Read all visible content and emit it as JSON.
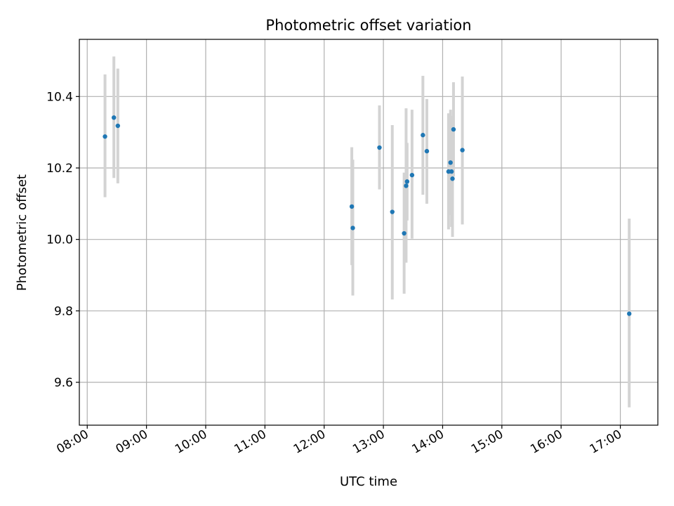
{
  "chart_data": {
    "type": "scatter",
    "title": "Photometric offset variation",
    "xlabel": "UTC time",
    "ylabel": "Photometric offset",
    "x_ticks": [
      "08:00",
      "09:00",
      "10:00",
      "11:00",
      "12:00",
      "13:00",
      "14:00",
      "15:00",
      "16:00",
      "17:00"
    ],
    "y_ticks": [
      "9.6",
      "9.8",
      "10.0",
      "10.2",
      "10.4"
    ],
    "xlim": [
      "07:52",
      "17:38"
    ],
    "ylim": [
      9.48,
      10.56
    ],
    "grid": true,
    "marker_color": "#1f77b4",
    "errorbar_color": "#d3d3d3",
    "points": [
      {
        "x": "08:18",
        "y": 10.288,
        "ylo": 10.118,
        "yhi": 10.462
      },
      {
        "x": "08:27",
        "y": 10.341,
        "ylo": 10.172,
        "yhi": 10.512
      },
      {
        "x": "08:31",
        "y": 10.318,
        "ylo": 10.157,
        "yhi": 10.478
      },
      {
        "x": "12:28",
        "y": 10.092,
        "ylo": 9.928,
        "yhi": 10.258
      },
      {
        "x": "12:29",
        "y": 10.032,
        "ylo": 9.843,
        "yhi": 10.223
      },
      {
        "x": "12:56",
        "y": 10.257,
        "ylo": 10.14,
        "yhi": 10.375
      },
      {
        "x": "13:09",
        "y": 10.077,
        "ylo": 9.832,
        "yhi": 10.32
      },
      {
        "x": "13:21",
        "y": 10.017,
        "ylo": 9.848,
        "yhi": 10.187
      },
      {
        "x": "13:23",
        "y": 10.15,
        "ylo": 9.935,
        "yhi": 10.367
      },
      {
        "x": "13:24",
        "y": 10.162,
        "ylo": 10.053,
        "yhi": 10.27
      },
      {
        "x": "13:29",
        "y": 10.18,
        "ylo": 10.002,
        "yhi": 10.363
      },
      {
        "x": "13:40",
        "y": 10.292,
        "ylo": 10.125,
        "yhi": 10.458
      },
      {
        "x": "13:44",
        "y": 10.247,
        "ylo": 10.1,
        "yhi": 10.393
      },
      {
        "x": "14:06",
        "y": 10.19,
        "ylo": 10.028,
        "yhi": 10.353
      },
      {
        "x": "14:08",
        "y": 10.215,
        "ylo": 10.068,
        "yhi": 10.363
      },
      {
        "x": "14:09",
        "y": 10.19,
        "ylo": 10.035,
        "yhi": 10.346
      },
      {
        "x": "14:10",
        "y": 10.17,
        "ylo": 10.007,
        "yhi": 10.332
      },
      {
        "x": "14:11",
        "y": 10.308,
        "ylo": 10.176,
        "yhi": 10.44
      },
      {
        "x": "14:20",
        "y": 10.25,
        "ylo": 10.042,
        "yhi": 10.456
      },
      {
        "x": "17:09",
        "y": 9.792,
        "ylo": 9.53,
        "yhi": 10.058
      }
    ]
  }
}
